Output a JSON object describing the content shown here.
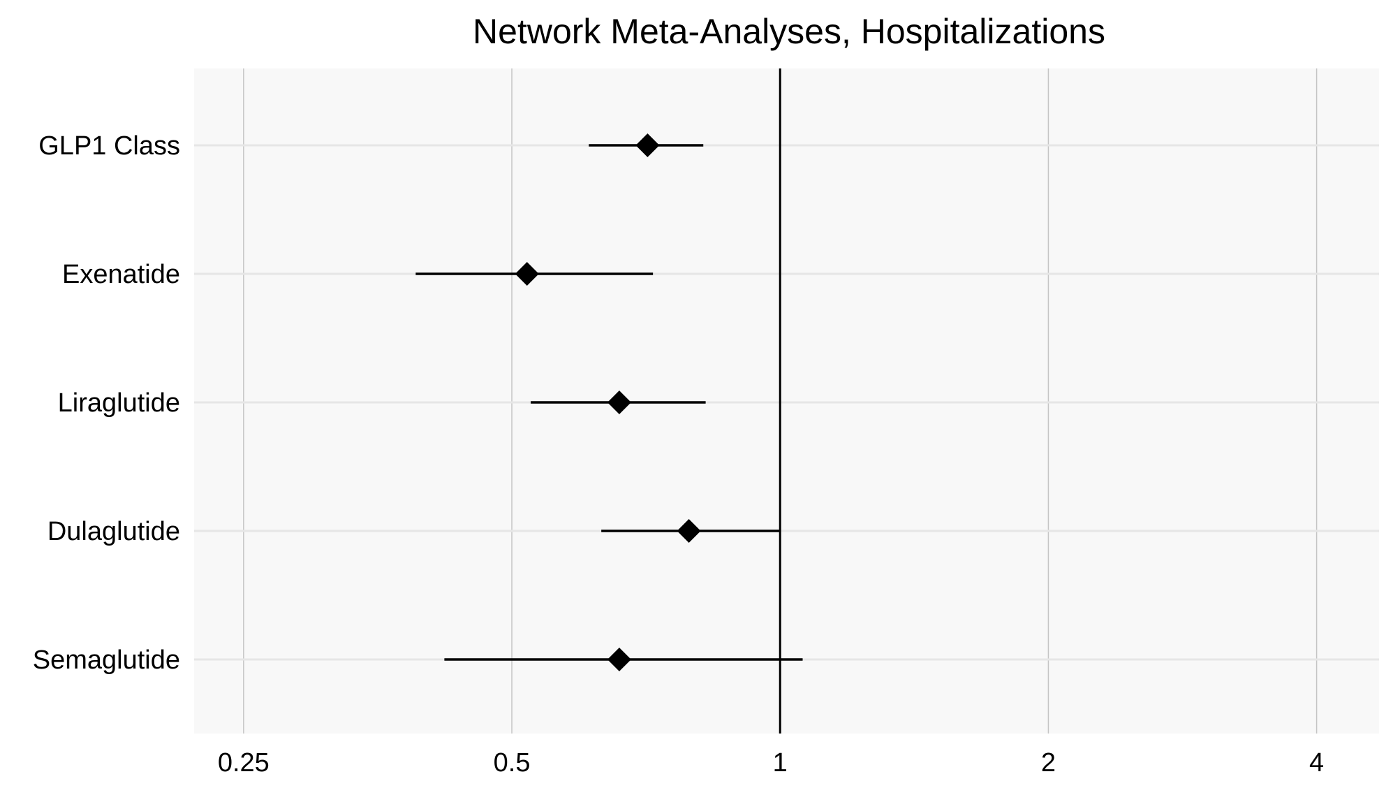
{
  "chart_data": {
    "type": "forest",
    "title": "Network Meta-Analyses, Hospitalizations",
    "x_scale": "log",
    "xlim": [
      0.22,
      4.7
    ],
    "x_ticks": [
      0.25,
      0.5,
      1,
      2,
      4
    ],
    "x_tick_labels": [
      "0.25",
      "0.5",
      "1",
      "2",
      "4"
    ],
    "reference_line": 1,
    "grid": true,
    "colors": {
      "panel": "#f8f8f8",
      "grid": "#e6e6e6",
      "vgrid": "#c4c4c4",
      "marker": "#000000"
    },
    "categories": [
      "GLP1 Class",
      "Exenatide",
      "Liraglutide",
      "Dulaglutide",
      "Semaglutide"
    ],
    "estimates": [
      {
        "label": "GLP1 Class",
        "estimate": 0.71,
        "lower": 0.61,
        "upper": 0.82
      },
      {
        "label": "Exenatide",
        "estimate": 0.52,
        "lower": 0.39,
        "upper": 0.72
      },
      {
        "label": "Liraglutide",
        "estimate": 0.66,
        "lower": 0.525,
        "upper": 0.825
      },
      {
        "label": "Dulaglutide",
        "estimate": 0.79,
        "lower": 0.63,
        "upper": 1.0
      },
      {
        "label": "Semaglutide",
        "estimate": 0.66,
        "lower": 0.42,
        "upper": 1.06
      }
    ]
  }
}
